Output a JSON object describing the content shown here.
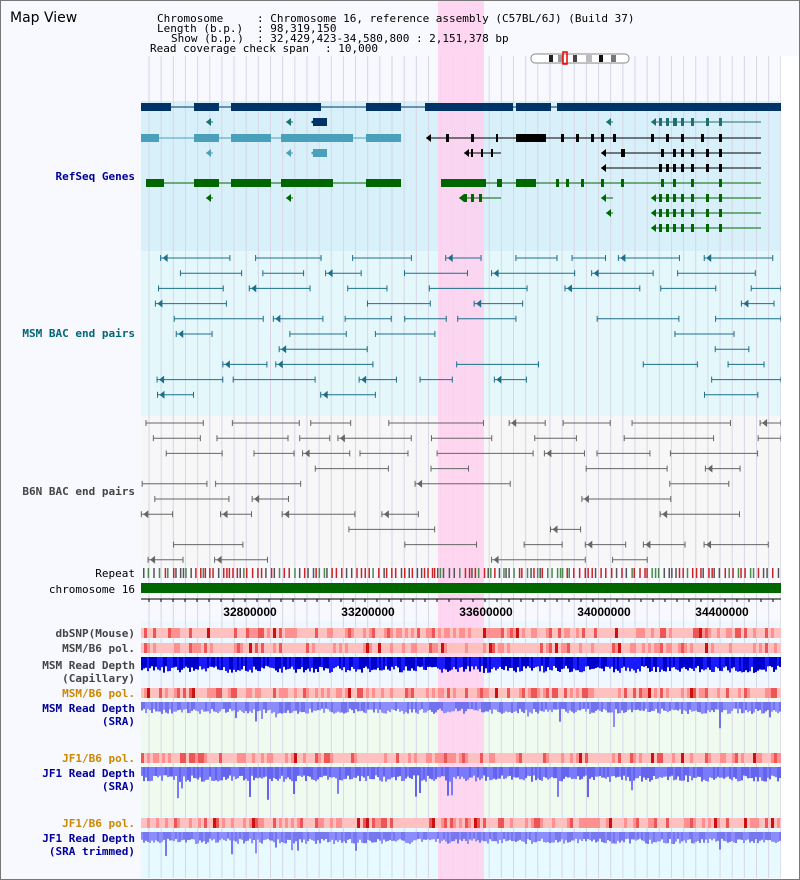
{
  "title": "Map View",
  "info": {
    "chromosome_key": "Chromosome",
    "chromosome_val": ": Chromosome 16, reference assembly (C57BL/6J) (Build 37)",
    "length_key": "Length (b.p.)",
    "length_val": ": 98,319,150",
    "show_key": "Show (b.p.)",
    "show_val": ": 32,429,423-34,580,800 : 2,151,378 bp",
    "coverage_key": "Read coverage check span",
    "coverage_val": ": 10,000"
  },
  "tracks": {
    "refseq": "RefSeq Genes",
    "msm_bac": "MSM BAC end pairs",
    "b6n_bac": "B6N BAC end pairs",
    "repeat": "Repeat",
    "chromosome": "chromosome 16",
    "dbsnp": "dbSNP(Mouse)",
    "msm_b6_pol_1": "MSM/B6 pol.",
    "msm_read_depth_cap": "MSM Read Depth\n(Capillary)",
    "msm_b6_pol_2": "MSM/B6 pol.",
    "msm_read_depth_sra": "MSM Read Depth\n(SRA)",
    "jf1_b6_pol_1": "JF1/B6 pol.",
    "jf1_read_depth_sra": "JF1 Read Depth\n(SRA)",
    "jf1_b6_pol_2": "JF1/B6 pol.",
    "jf1_read_depth_trim": "JF1 Read Depth\n(SRA trimmed)"
  },
  "axis_ticks": [
    "32800000",
    "33200000",
    "33600000",
    "34000000",
    "34400000"
  ],
  "colors": {
    "refseq_label": "#000099",
    "msm_label": "#006677",
    "b6n_label": "#444444",
    "orange_label": "#cc8800",
    "blue_label": "#000099",
    "highlight": "#ffd0ee"
  }
}
